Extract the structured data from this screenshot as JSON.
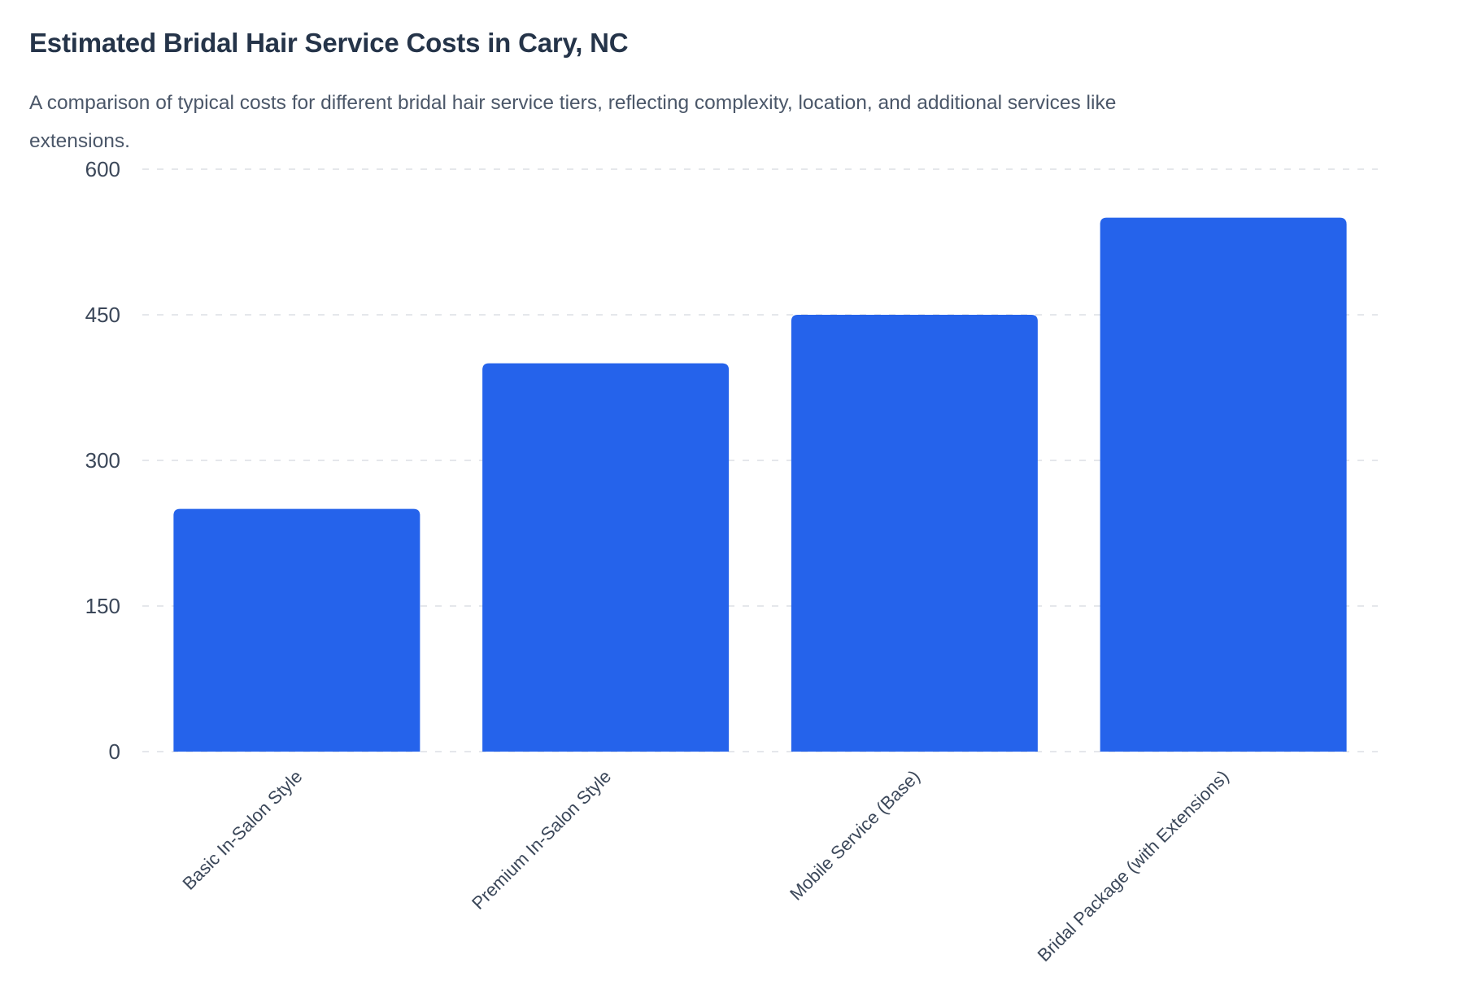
{
  "header": {
    "title": "Estimated Bridal Hair Service Costs in Cary, NC",
    "subtitle_lines": [
      "A comparison of typical costs for different bridal hair service tiers, reflecting complexity, location, and additional services like",
      "extensions."
    ]
  },
  "colors": {
    "bar": "#2563eb",
    "grid": "#e5e7eb",
    "axis_text": "#3b4759",
    "title_text": "#253449",
    "subtitle_text": "#4b5769"
  },
  "chart_data": {
    "type": "bar",
    "title": "Estimated Bridal Hair Service Costs in Cary, NC",
    "subtitle": "A comparison of typical costs for different bridal hair service tiers, reflecting complexity, location, and additional services like extensions.",
    "categories": [
      "Basic In-Salon Style",
      "Premium In-Salon Style",
      "Mobile Service (Base)",
      "Bridal Package (with Extensions)"
    ],
    "values": [
      250,
      400,
      450,
      550
    ],
    "xlabel": "",
    "ylabel": "",
    "yticks": [
      0,
      150,
      300,
      450,
      600
    ],
    "ylim": [
      0,
      600
    ],
    "grid": "horizontal-dashed",
    "legend": "none",
    "x_tick_rotation": -45
  }
}
